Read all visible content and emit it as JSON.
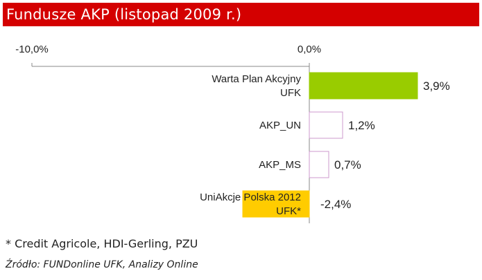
{
  "title": "Fundusze AKP (listopad 2009 r.)",
  "footnote": "* Credit Agricole, HDI-Gerling, PZU",
  "source": "Źródło: FUNDonline UFK, Analizy Online",
  "chart_data": {
    "type": "bar",
    "orientation": "horizontal",
    "xlim": [
      -10.0,
      0.0
    ],
    "ticks": [
      {
        "value": -10.0,
        "label": "-10,0%"
      },
      {
        "value": 0.0,
        "label": "0,0%"
      }
    ],
    "categories": [
      [
        "Warta Plan Akcyjny",
        "UFK"
      ],
      [
        "AKP_UN"
      ],
      [
        "AKP_MS"
      ],
      [
        "UniAkcje Polska 2012",
        "UFK*"
      ]
    ],
    "values": [
      3.9,
      1.2,
      0.7,
      -2.4
    ],
    "value_labels": [
      "3,9%",
      "1,2%",
      "0,7%",
      "-2,4%"
    ],
    "colors": [
      "#99cc00",
      "#ffffff",
      "#ffffff",
      "#ffcc00"
    ],
    "borders": [
      "#99cc00",
      "#cc99cc",
      "#cc99cc",
      "#ffcc00"
    ],
    "grid": false
  }
}
